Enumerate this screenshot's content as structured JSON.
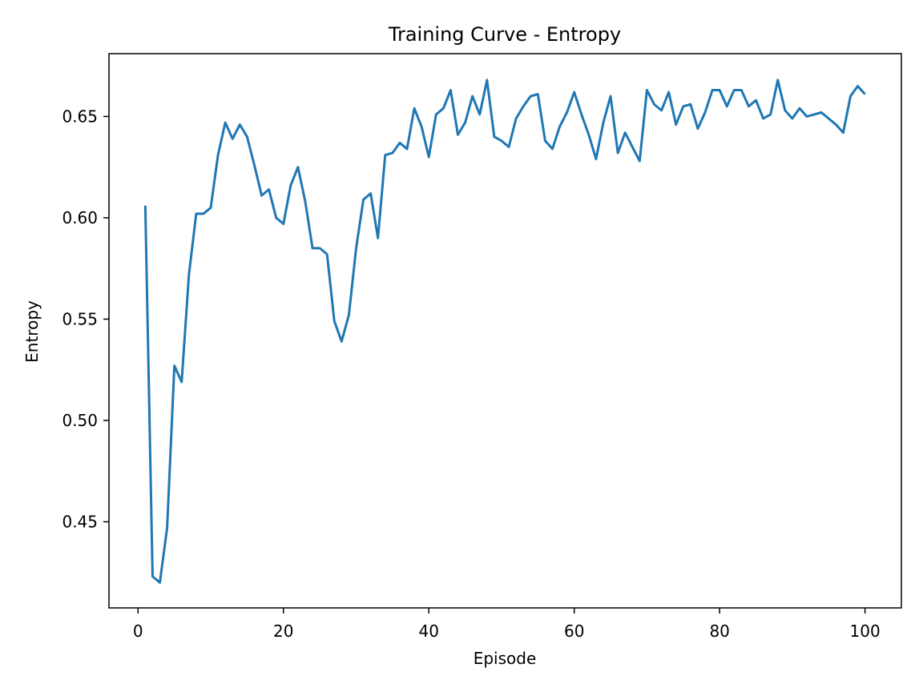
{
  "chart_data": {
    "type": "line",
    "title": "Training Curve - Entropy",
    "xlabel": "Episode",
    "ylabel": "Entropy",
    "xlim": [
      -4,
      105
    ],
    "ylim": [
      0.4075,
      0.681
    ],
    "x_ticks": [
      0,
      20,
      40,
      60,
      80,
      100
    ],
    "x_tick_labels": [
      "0",
      "20",
      "40",
      "60",
      "80",
      "100"
    ],
    "y_ticks": [
      0.45,
      0.5,
      0.55,
      0.6,
      0.65
    ],
    "y_tick_labels": [
      "0.45",
      "0.50",
      "0.55",
      "0.60",
      "0.65"
    ],
    "grid": false,
    "series": [
      {
        "color": "#1f77b4",
        "x": [
          1,
          2,
          3,
          4,
          5,
          6,
          7,
          8,
          9,
          10,
          11,
          12,
          13,
          14,
          15,
          16,
          17,
          18,
          19,
          20,
          21,
          22,
          23,
          24,
          25,
          26,
          27,
          28,
          29,
          30,
          31,
          32,
          33,
          34,
          35,
          36,
          37,
          38,
          39,
          40,
          41,
          42,
          43,
          44,
          45,
          46,
          47,
          48,
          49,
          50,
          51,
          52,
          53,
          54,
          55,
          56,
          57,
          58,
          59,
          60,
          61,
          62,
          63,
          64,
          65,
          66,
          67,
          68,
          69,
          70,
          71,
          72,
          73,
          74,
          75,
          76,
          77,
          78,
          79,
          80,
          81,
          82,
          83,
          84,
          85,
          86,
          87,
          88,
          89,
          90,
          91,
          92,
          93,
          94,
          95,
          96,
          97,
          98,
          99,
          100
        ],
        "y": [
          0.606,
          0.423,
          0.42,
          0.447,
          0.527,
          0.519,
          0.572,
          0.602,
          0.602,
          0.605,
          0.631,
          0.647,
          0.639,
          0.646,
          0.64,
          0.626,
          0.611,
          0.614,
          0.6,
          0.597,
          0.616,
          0.625,
          0.608,
          0.585,
          0.585,
          0.582,
          0.549,
          0.539,
          0.552,
          0.585,
          0.609,
          0.612,
          0.59,
          0.631,
          0.632,
          0.637,
          0.634,
          0.654,
          0.645,
          0.63,
          0.651,
          0.654,
          0.663,
          0.641,
          0.647,
          0.66,
          0.651,
          0.668,
          0.64,
          0.638,
          0.635,
          0.649,
          0.655,
          0.66,
          0.661,
          0.638,
          0.634,
          0.645,
          0.652,
          0.662,
          0.651,
          0.641,
          0.629,
          0.647,
          0.66,
          0.632,
          0.642,
          0.635,
          0.628,
          0.663,
          0.656,
          0.653,
          0.662,
          0.646,
          0.655,
          0.656,
          0.644,
          0.652,
          0.663,
          0.663,
          0.655,
          0.663,
          0.663,
          0.655,
          0.658,
          0.649,
          0.651,
          0.668,
          0.653,
          0.649,
          0.654,
          0.65,
          0.651,
          0.652,
          0.649,
          0.646,
          0.642,
          0.66,
          0.665,
          0.661
        ]
      }
    ]
  }
}
